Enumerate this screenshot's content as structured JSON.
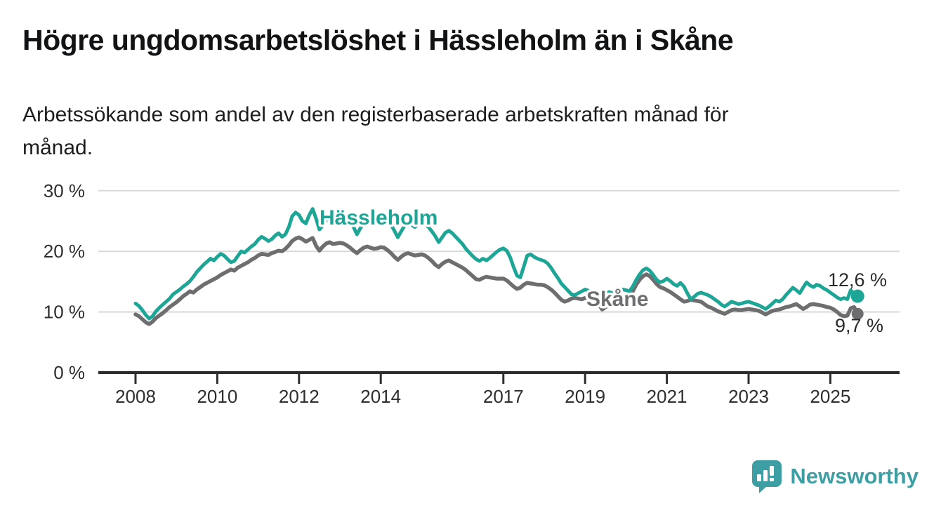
{
  "title": "Högre ungdomsarbetslöshet i Hässleholm än i Skåne",
  "subtitle_line1": "Arbetssökande som andel av den registerbaserade arbetskraften månad för",
  "subtitle_line2": "månad.",
  "branding": {
    "name": "Newsworthy",
    "logo_icon": "bar-chart-speech-bubble-icon",
    "color": "#3d9fa3"
  },
  "colors": {
    "hassleholm_line": "#1da595",
    "skane_line": "#6e6e71",
    "gridline": "#d9d9d9",
    "axis": "#2d2d2d",
    "label_text": "#2e2e2e",
    "background": "#ffffff"
  },
  "chart_data": {
    "type": "line",
    "title": "Högre ungdomsarbetslöshet i Hässleholm än i Skåne",
    "subtitle": "Arbetssökande som andel av den registerbaserade arbetskraften månad för månad.",
    "x_unit": "month",
    "x_start": "2008-01",
    "x_end": "2025-09",
    "ylim": [
      0,
      31
    ],
    "grid": "horizontal",
    "legend_position": "inline-labels",
    "x_ticks": [
      {
        "label": "2008",
        "year": 2008
      },
      {
        "label": "2010",
        "year": 2010
      },
      {
        "label": "2012",
        "year": 2012
      },
      {
        "label": "2014",
        "year": 2014
      },
      {
        "label": "2017",
        "year": 2017
      },
      {
        "label": "2019",
        "year": 2019
      },
      {
        "label": "2021",
        "year": 2021
      },
      {
        "label": "2023",
        "year": 2023
      },
      {
        "label": "2025",
        "year": 2025
      }
    ],
    "y_ticks": [
      {
        "label": "30 %",
        "value": 30
      },
      {
        "label": "20 %",
        "value": 20
      },
      {
        "label": "10 %",
        "value": 10
      },
      {
        "label": "0 %",
        "value": 0
      }
    ],
    "series": [
      {
        "name": "Hässleholm",
        "color": "#1da595",
        "end_label": "12,6 %",
        "end_value": 12.6,
        "values": [
          11.4,
          11.0,
          10.3,
          9.5,
          8.9,
          9.3,
          10.1,
          10.7,
          11.2,
          11.7,
          12.2,
          12.9,
          13.3,
          13.7,
          14.2,
          14.6,
          15.1,
          15.8,
          16.6,
          17.2,
          17.8,
          18.3,
          18.8,
          18.5,
          19.1,
          19.6,
          19.3,
          18.7,
          18.2,
          18.4,
          19.2,
          20.0,
          19.8,
          20.3,
          20.8,
          21.2,
          21.9,
          22.4,
          22.1,
          21.7,
          22.0,
          22.6,
          23.0,
          22.4,
          22.8,
          24.0,
          25.8,
          26.4,
          26.0,
          25.0,
          24.6,
          26.0,
          27.0,
          25.4,
          23.6,
          24.3,
          25.2,
          25.6,
          25.3,
          25.6,
          25.9,
          26.1,
          25.5,
          24.8,
          24.0,
          22.8,
          23.8,
          24.7,
          25.2,
          25.4,
          25.0,
          24.7,
          25.3,
          25.6,
          25.1,
          24.4,
          23.4,
          22.3,
          23.3,
          24.2,
          24.6,
          24.4,
          24.0,
          24.4,
          24.8,
          24.5,
          24.0,
          23.3,
          22.5,
          21.5,
          22.3,
          23.1,
          23.4,
          23.0,
          22.4,
          21.8,
          21.2,
          20.4,
          19.8,
          19.2,
          18.7,
          18.4,
          18.8,
          18.5,
          18.9,
          19.4,
          19.9,
          20.3,
          20.5,
          20.1,
          19.0,
          17.4,
          16.0,
          15.7,
          17.5,
          19.3,
          19.5,
          19.1,
          18.8,
          18.6,
          18.4,
          18.0,
          17.3,
          16.4,
          15.6,
          14.7,
          14.1,
          13.5,
          12.9,
          12.8,
          13.1,
          13.4,
          13.7,
          13.5,
          13.2,
          12.9,
          12.7,
          12.6,
          13.0,
          13.3,
          13.1,
          13.3,
          13.5,
          13.7,
          13.6,
          13.4,
          14.2,
          15.3,
          16.2,
          16.9,
          17.2,
          16.8,
          16.1,
          15.3,
          14.9,
          15.1,
          15.5,
          15.1,
          14.6,
          14.3,
          14.8,
          14.2,
          13.1,
          12.1,
          12.5,
          13.0,
          13.2,
          13.0,
          12.8,
          12.5,
          12.1,
          11.7,
          11.2,
          10.9,
          11.3,
          11.7,
          11.5,
          11.3,
          11.4,
          11.6,
          11.7,
          11.5,
          11.3,
          11.1,
          10.8,
          10.5,
          10.9,
          11.4,
          11.9,
          11.7,
          12.1,
          12.8,
          13.4,
          14.0,
          13.6,
          13.1,
          14.0,
          14.9,
          14.4,
          14.1,
          14.5,
          14.3,
          13.9,
          13.6,
          13.2,
          12.8,
          12.4,
          12.1,
          12.3,
          12.1,
          13.6,
          12.9,
          12.6
        ]
      },
      {
        "name": "Skåne",
        "color": "#6e6e71",
        "end_label": "9,7 %",
        "end_value": 9.7,
        "values": [
          9.6,
          9.3,
          8.8,
          8.3,
          8.0,
          8.4,
          9.0,
          9.4,
          9.8,
          10.3,
          10.8,
          11.2,
          11.6,
          12.1,
          12.6,
          13.0,
          13.4,
          13.2,
          13.7,
          14.1,
          14.5,
          14.8,
          15.1,
          15.4,
          15.7,
          16.1,
          16.4,
          16.7,
          17.0,
          16.8,
          17.3,
          17.6,
          17.9,
          18.2,
          18.6,
          18.9,
          19.3,
          19.6,
          19.5,
          19.4,
          19.7,
          19.9,
          20.1,
          20.0,
          20.4,
          21.0,
          21.7,
          22.1,
          22.3,
          22.0,
          21.6,
          21.9,
          22.2,
          20.9,
          20.1,
          20.8,
          21.3,
          21.5,
          21.2,
          21.3,
          21.4,
          21.3,
          21.0,
          20.6,
          20.1,
          19.7,
          20.2,
          20.6,
          20.8,
          20.6,
          20.4,
          20.5,
          20.7,
          20.6,
          20.2,
          19.7,
          19.1,
          18.6,
          19.1,
          19.5,
          19.7,
          19.5,
          19.3,
          19.4,
          19.5,
          19.3,
          18.9,
          18.4,
          17.8,
          17.4,
          17.9,
          18.3,
          18.5,
          18.2,
          17.9,
          17.6,
          17.3,
          16.9,
          16.4,
          15.9,
          15.4,
          15.3,
          15.6,
          15.8,
          15.7,
          15.6,
          15.5,
          15.5,
          15.5,
          15.2,
          14.7,
          14.2,
          13.8,
          14.0,
          14.5,
          14.8,
          14.7,
          14.6,
          14.5,
          14.5,
          14.4,
          14.1,
          13.7,
          13.2,
          12.6,
          12.0,
          11.7,
          11.9,
          12.2,
          12.3,
          12.2,
          12.1,
          12.3,
          12.2,
          12.0,
          11.7,
          11.3,
          10.4,
          10.8,
          11.3,
          11.6,
          11.7,
          11.8,
          12.0,
          12.4,
          12.6,
          13.4,
          14.5,
          15.3,
          15.9,
          16.2,
          15.9,
          15.3,
          14.6,
          14.1,
          13.9,
          13.6,
          13.3,
          12.9,
          12.5,
          12.1,
          11.7,
          11.8,
          12.0,
          11.9,
          11.8,
          11.7,
          11.3,
          10.9,
          10.7,
          10.4,
          10.1,
          9.9,
          9.7,
          10.0,
          10.3,
          10.4,
          10.3,
          10.3,
          10.4,
          10.5,
          10.4,
          10.3,
          10.2,
          9.9,
          9.6,
          9.9,
          10.2,
          10.3,
          10.4,
          10.6,
          10.8,
          10.9,
          11.1,
          11.3,
          10.9,
          10.5,
          10.8,
          11.2,
          11.3,
          11.2,
          11.1,
          11.0,
          10.8,
          10.7,
          10.4,
          10.0,
          9.5,
          9.3,
          9.4,
          10.6,
          10.8,
          9.7
        ]
      }
    ]
  }
}
